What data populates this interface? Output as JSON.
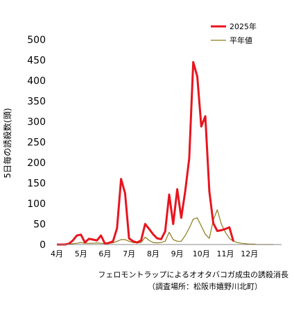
{
  "chart_data": {
    "type": "line",
    "xlabel": "",
    "ylabel": "5日毎の誘殺数(頭)",
    "ylim": [
      0,
      500
    ],
    "yticks": [
      0,
      50,
      100,
      150,
      200,
      250,
      300,
      350,
      400,
      450,
      500
    ],
    "xlim": [
      0,
      56
    ],
    "xticks": [
      {
        "pos": 0,
        "label": "4月"
      },
      {
        "pos": 6,
        "label": "5月"
      },
      {
        "pos": 12,
        "label": "6月"
      },
      {
        "pos": 18,
        "label": "7月"
      },
      {
        "pos": 24,
        "label": "8月"
      },
      {
        "pos": 30,
        "label": "9月"
      },
      {
        "pos": 36,
        "label": "10月"
      },
      {
        "pos": 42,
        "label": "11月"
      },
      {
        "pos": 48,
        "label": "12月"
      }
    ],
    "grid": false,
    "legend_position": "top-right",
    "series": [
      {
        "name": "2025年",
        "color": "#e8141e",
        "values": [
          0,
          0,
          0,
          2,
          10,
          22,
          24,
          5,
          14,
          12,
          10,
          22,
          2,
          4,
          8,
          40,
          160,
          125,
          15,
          8,
          5,
          10,
          50,
          38,
          25,
          15,
          13,
          32,
          122,
          50,
          135,
          65,
          130,
          210,
          445,
          410,
          288,
          313,
          130,
          52,
          33,
          35,
          38,
          42,
          8
        ]
      },
      {
        "name": "平年値",
        "color": "#8a7a1a",
        "values": [
          0,
          0,
          1,
          1,
          2,
          3,
          5,
          3,
          3,
          3,
          4,
          3,
          2,
          3,
          4,
          8,
          12,
          12,
          8,
          5,
          4,
          5,
          18,
          10,
          5,
          4,
          5,
          8,
          30,
          12,
          8,
          8,
          22,
          40,
          62,
          65,
          45,
          25,
          15,
          60,
          85,
          50,
          30,
          15,
          8,
          5,
          3,
          2,
          1,
          1,
          0,
          0,
          0,
          0,
          0
        ]
      }
    ],
    "caption_line1": "フェロモントラップによるオオタバコガ成虫の誘殺消長",
    "caption_line2": "（調査場所：松阪市嬉野川北町）"
  }
}
